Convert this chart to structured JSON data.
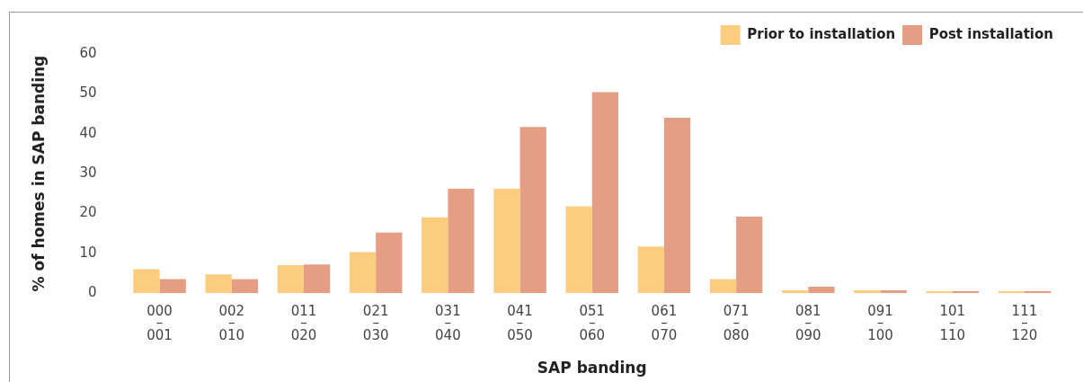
{
  "chart_data": {
    "type": "bar",
    "xlabel": "SAP banding",
    "ylabel": "% of homes in SAP banding",
    "categories": [
      "000–001",
      "002–010",
      "011–020",
      "021–030",
      "031–040",
      "041–050",
      "051–060",
      "061–070",
      "071–080",
      "081–090",
      "091–100",
      "101–110",
      "111–120"
    ],
    "series": [
      {
        "name": "Prior to installation",
        "color": "#fdcd7f",
        "values": [
          6,
          4.7,
          7,
          10.3,
          19,
          26.2,
          21.8,
          11.7,
          3.5,
          0.7,
          0.7,
          0.5,
          0.5
        ]
      },
      {
        "name": "Post installation",
        "color": "#e59d84",
        "values": [
          3.5,
          3.5,
          7.2,
          15.2,
          26.2,
          41.7,
          50.4,
          44,
          19.2,
          1.6,
          0.7,
          0.5,
          0.5
        ]
      }
    ],
    "ylim": [
      0,
      60
    ],
    "yticks": [
      0,
      10,
      20,
      30,
      40,
      50,
      60
    ],
    "grid": false,
    "legend": "top right"
  }
}
